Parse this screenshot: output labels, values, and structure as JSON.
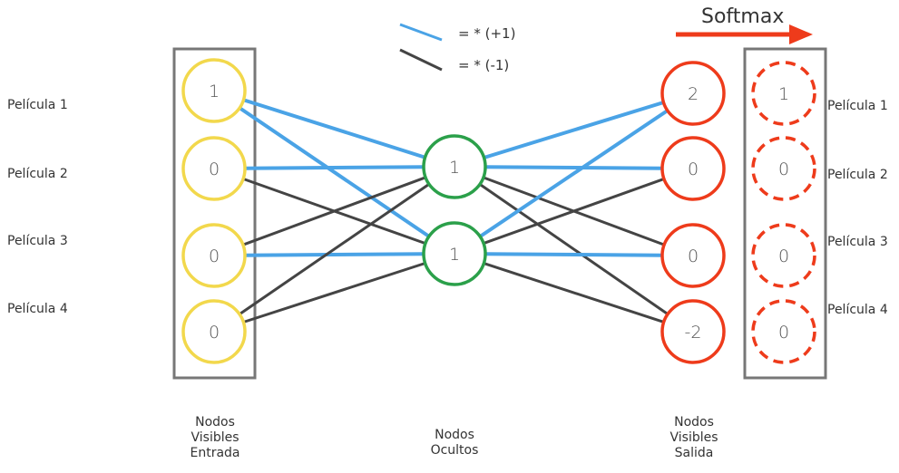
{
  "legend": {
    "positive": {
      "label": "= * (+1)",
      "color": "#4aa3e6"
    },
    "negative": {
      "label": "= * (-1)",
      "color": "#444444"
    }
  },
  "softmax_label": "Softmax",
  "colors": {
    "input": "#f2d84c",
    "hidden": "#2ba04a",
    "output": "#ee3b1b",
    "box": "#777777",
    "arrow": "#ee3b1b"
  },
  "left_labels": [
    "Película 1",
    "Película 2",
    "Película 3",
    "Película 4"
  ],
  "right_labels": [
    "Película 1",
    "Película 2",
    "Película 3",
    "Película 4"
  ],
  "input_values": [
    "1",
    "0",
    "0",
    "0"
  ],
  "hidden_values": [
    "1",
    "1"
  ],
  "output_values": [
    "2",
    "0",
    "0",
    "-2"
  ],
  "softmax_values": [
    "1",
    "0",
    "0",
    "0"
  ],
  "captions": {
    "input": [
      "Nodos",
      "Visibles",
      "Entrada"
    ],
    "hidden": [
      "Nodos",
      "Ocultos"
    ],
    "output": [
      "Nodos",
      "Visibles",
      "Salida"
    ]
  },
  "connections_in_hidden": [
    {
      "from": 0,
      "to": 0,
      "sign": 1
    },
    {
      "from": 0,
      "to": 1,
      "sign": 1
    },
    {
      "from": 1,
      "to": 0,
      "sign": 1
    },
    {
      "from": 1,
      "to": 1,
      "sign": -1
    },
    {
      "from": 2,
      "to": 0,
      "sign": -1
    },
    {
      "from": 2,
      "to": 1,
      "sign": 1
    },
    {
      "from": 3,
      "to": 0,
      "sign": -1
    },
    {
      "from": 3,
      "to": 1,
      "sign": -1
    }
  ],
  "connections_hidden_out": [
    {
      "from": 0,
      "to": 0,
      "sign": 1
    },
    {
      "from": 0,
      "to": 1,
      "sign": 1
    },
    {
      "from": 0,
      "to": 2,
      "sign": -1
    },
    {
      "from": 0,
      "to": 3,
      "sign": -1
    },
    {
      "from": 1,
      "to": 0,
      "sign": 1
    },
    {
      "from": 1,
      "to": 1,
      "sign": -1
    },
    {
      "from": 1,
      "to": 2,
      "sign": 1
    },
    {
      "from": 1,
      "to": 3,
      "sign": -1
    }
  ]
}
